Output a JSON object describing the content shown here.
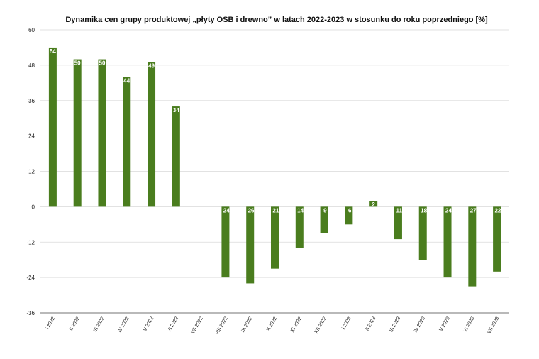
{
  "chart_data": {
    "type": "bar",
    "title": "Dynamika cen grupy produktowej „płyty OSB i drewno” w latach 2022-2023 w stosunku do roku poprzedniego [%]",
    "categories": [
      "I 2022",
      "II 2022",
      "III 2022",
      "IV 2022",
      "V 2022",
      "VI 2022",
      "VII 2022",
      "VIII 2022",
      "IX 2022",
      "X 2022",
      "XI 2022",
      "XII 2022",
      "I 2023",
      "II 2023",
      "III 2023",
      "IV 2023",
      "V 2023",
      "VI 2023",
      "VII 2023"
    ],
    "values": [
      54,
      50,
      50,
      44,
      49,
      34,
      null,
      -24,
      -26,
      -21,
      -14,
      -9,
      -6,
      2,
      -11,
      -18,
      -24,
      -27,
      -22
    ],
    "data_labels": [
      "54",
      "50",
      "50",
      "44",
      "49",
      "34",
      "",
      "-24",
      "-26",
      "-21",
      "-14",
      "-9",
      "-6",
      "2",
      "-11",
      "-18",
      "-24",
      "-27",
      "-22"
    ],
    "yticks": [
      60,
      48,
      36,
      24,
      12,
      0,
      -12,
      -24,
      -36
    ],
    "ylim": [
      -36,
      60
    ],
    "bar_color": "#4a7d1e",
    "grid": true,
    "legend": "none"
  }
}
